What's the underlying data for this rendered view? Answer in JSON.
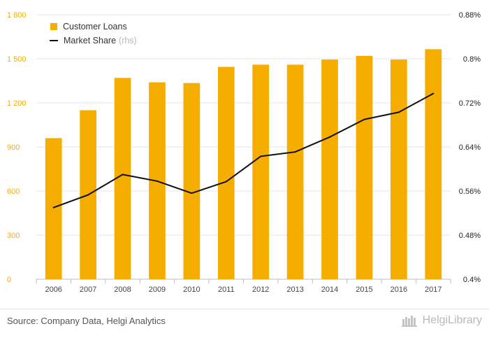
{
  "chart_data": {
    "type": "bar",
    "categories": [
      "2006",
      "2007",
      "2008",
      "2009",
      "2010",
      "2011",
      "2012",
      "2013",
      "2014",
      "2015",
      "2016",
      "2017"
    ],
    "series": [
      {
        "name": "Customer Loans",
        "type": "bar",
        "axis": "left",
        "color": "#f5ae00",
        "values": [
          960,
          1150,
          1370,
          1340,
          1335,
          1445,
          1460,
          1460,
          1495,
          1520,
          1495,
          1565
        ]
      },
      {
        "name": "Market Share",
        "axis_suffix": "(rhs)",
        "type": "line",
        "axis": "right",
        "color": "#111111",
        "values": [
          0.53,
          0.553,
          0.59,
          0.578,
          0.556,
          0.577,
          0.623,
          0.631,
          0.658,
          0.69,
          0.703,
          0.737
        ]
      }
    ],
    "left_axis": {
      "min": 0,
      "max": 1800,
      "ticks": [
        "0",
        "300",
        "600",
        "900",
        "1 200",
        "1 500",
        "1 800"
      ],
      "tick_color": "#f5ae00"
    },
    "right_axis": {
      "min": 0.4,
      "max": 0.88,
      "ticks": [
        "0.4%",
        "0.48%",
        "0.56%",
        "0.64%",
        "0.72%",
        "0.8%",
        "0.88%"
      ],
      "tick_color": "#222222"
    },
    "grid": true,
    "legend_position": "top-left"
  },
  "footer": {
    "source": "Source: Company Data, Helgi Analytics",
    "brand": "HelgiLibrary"
  }
}
